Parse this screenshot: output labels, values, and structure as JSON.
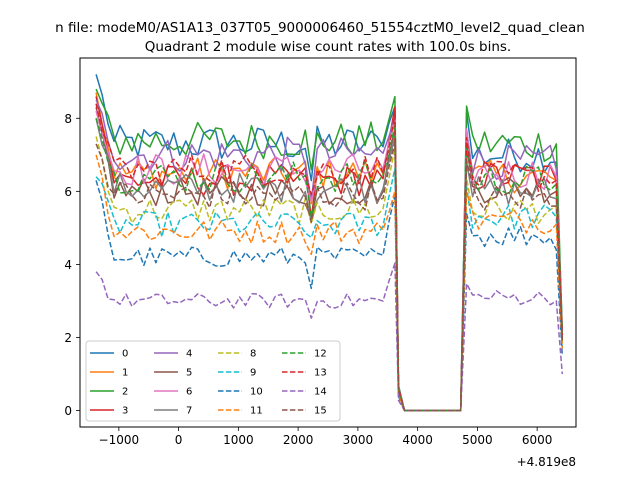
{
  "chart_data": {
    "type": "line",
    "suptitle": "n file: modeM0/AS1A13_037T05_9000006460_51554cztM0_level2_quad_clean",
    "title": "Quadrant 2 module wise count rates with 100.0s bins.",
    "xlabel": "",
    "ylabel": "",
    "x_offset_label": "+4.819e8",
    "xlim": [
      -1650,
      6650
    ],
    "ylim": [
      -0.45,
      9.65
    ],
    "xticks": [
      -1000,
      0,
      1000,
      2000,
      3000,
      4000,
      5000,
      6000
    ],
    "xtick_labels": [
      "−1000",
      "0",
      "1000",
      "2000",
      "3000",
      "4000",
      "5000",
      "6000"
    ],
    "yticks": [
      0,
      2,
      4,
      6,
      8
    ],
    "ytick_labels": [
      "0",
      "2",
      "4",
      "6",
      "8"
    ],
    "grid": false,
    "legend_position": "lower-left",
    "legend_columns": 4,
    "segments": {
      "a_start": -1380,
      "a_end": 3580,
      "a_step": 100,
      "drop": [
        [
          3680,
          0.6
        ],
        [
          3780,
          0
        ]
      ],
      "gap_zero": [
        3780,
        4720
      ],
      "b_start": 4820,
      "b_end": 6320,
      "b_step": 100,
      "tail_x": 6420
    },
    "series": [
      {
        "name": "0",
        "color": "#1f77b4",
        "dashed": false,
        "start": 9.2,
        "level_a": 7.3,
        "end_a": 8.4,
        "level_b": 7.0,
        "end_b": 6.8,
        "tail": 2.1
      },
      {
        "name": "1",
        "color": "#ff7f0e",
        "dashed": false,
        "start": 8.7,
        "level_a": 6.5,
        "end_a": 8.2,
        "level_b": 6.4,
        "end_b": 6.3,
        "tail": 2.0
      },
      {
        "name": "2",
        "color": "#2ca02c",
        "dashed": false,
        "start": 8.8,
        "level_a": 7.4,
        "end_a": 8.5,
        "level_b": 7.3,
        "end_b": 7.3,
        "tail": 2.2
      },
      {
        "name": "3",
        "color": "#d62728",
        "dashed": false,
        "start": 8.6,
        "level_a": 6.3,
        "end_a": 8.3,
        "level_b": 6.4,
        "end_b": 6.3,
        "tail": 2.0
      },
      {
        "name": "4",
        "color": "#9467bd",
        "dashed": false,
        "start": 8.5,
        "level_a": 7.0,
        "end_a": 8.1,
        "level_b": 6.8,
        "end_b": 6.6,
        "tail": 2.0
      },
      {
        "name": "5",
        "color": "#8c564b",
        "dashed": false,
        "start": 8.3,
        "level_a": 6.0,
        "end_a": 7.8,
        "level_b": 6.1,
        "end_b": 6.0,
        "tail": 1.9
      },
      {
        "name": "6",
        "color": "#e377c2",
        "dashed": false,
        "start": 8.2,
        "level_a": 6.6,
        "end_a": 7.9,
        "level_b": 6.5,
        "end_b": 6.4,
        "tail": 2.0
      },
      {
        "name": "7",
        "color": "#7f7f7f",
        "dashed": false,
        "start": 8.0,
        "level_a": 6.1,
        "end_a": 7.6,
        "level_b": 6.0,
        "end_b": 5.8,
        "tail": 1.9
      },
      {
        "name": "8",
        "color": "#bcbd22",
        "dashed": true,
        "start": 7.5,
        "level_a": 5.5,
        "end_a": 7.2,
        "level_b": 5.5,
        "end_b": 5.6,
        "tail": 1.8
      },
      {
        "name": "9",
        "color": "#17becf",
        "dashed": true,
        "start": 6.4,
        "level_a": 5.1,
        "end_a": 6.6,
        "level_b": 5.3,
        "end_b": 5.3,
        "tail": 1.7
      },
      {
        "name": "10",
        "color": "#1f77b4",
        "dashed": true,
        "start": 6.3,
        "level_a": 4.2,
        "end_a": 6.0,
        "level_b": 4.8,
        "end_b": 4.4,
        "tail": 1.5
      },
      {
        "name": "11",
        "color": "#ff7f0e",
        "dashed": true,
        "start": 7.0,
        "level_a": 4.9,
        "end_a": 6.1,
        "level_b": 5.2,
        "end_b": 5.1,
        "tail": 1.7
      },
      {
        "name": "12",
        "color": "#2ca02c",
        "dashed": true,
        "start": 8.0,
        "level_a": 6.4,
        "end_a": 7.8,
        "level_b": 6.3,
        "end_b": 6.2,
        "tail": 2.0
      },
      {
        "name": "13",
        "color": "#d62728",
        "dashed": true,
        "start": 8.4,
        "level_a": 6.6,
        "end_a": 8.0,
        "level_b": 6.4,
        "end_b": 6.3,
        "tail": 2.0
      },
      {
        "name": "14",
        "color": "#9467bd",
        "dashed": true,
        "start": 3.8,
        "level_a": 3.0,
        "end_a": 4.0,
        "level_b": 3.1,
        "end_b": 3.0,
        "tail": 1.0
      },
      {
        "name": "15",
        "color": "#8c564b",
        "dashed": true,
        "start": 7.3,
        "level_a": 5.9,
        "end_a": 7.3,
        "level_b": 5.8,
        "end_b": 5.6,
        "tail": 1.9
      }
    ]
  }
}
